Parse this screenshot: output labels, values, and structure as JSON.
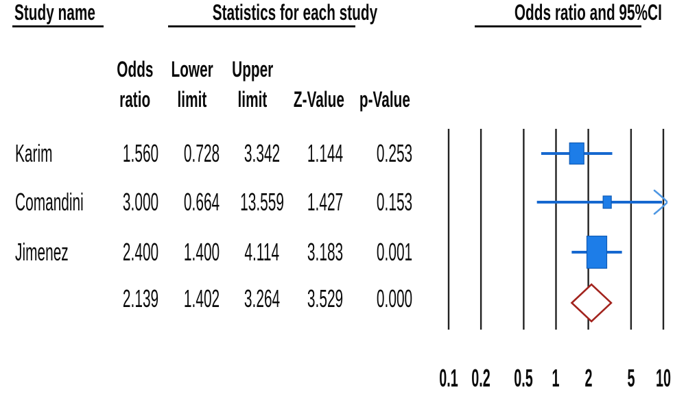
{
  "titles": {
    "study_name": "Study name",
    "statistics": "Statistics for each study",
    "odds_ratio_ci": "Odds ratio and 95%CI"
  },
  "table": {
    "columns": [
      {
        "line1": "Odds",
        "line2": "ratio"
      },
      {
        "line1": "Lower",
        "line2": "limit"
      },
      {
        "line1": "Upper",
        "line2": "limit"
      },
      {
        "line1": "",
        "line2": "Z-Value"
      },
      {
        "line1": "",
        "line2": "p-Value"
      }
    ],
    "rows": [
      {
        "name": "Karim",
        "values": [
          "1.560",
          "0.728",
          "3.342",
          "1.144",
          "0.253"
        ]
      },
      {
        "name": "Comandini",
        "values": [
          "3.000",
          "0.664",
          "13.559",
          "1.427",
          "0.153"
        ]
      },
      {
        "name": "Jimenez",
        "values": [
          "2.400",
          "1.400",
          "4.114",
          "3.183",
          "0.001"
        ]
      },
      {
        "name": "",
        "values": [
          "2.139",
          "1.402",
          "3.264",
          "3.529",
          "0.000"
        ]
      }
    ]
  },
  "chart_data": {
    "type": "forest",
    "x_scale": "log",
    "x_range": [
      0.1,
      10
    ],
    "x_ticks": [
      0.1,
      0.2,
      0.5,
      1,
      2,
      5,
      10
    ],
    "studies": [
      {
        "name": "Karim",
        "odds_ratio": 1.56,
        "lower": 0.728,
        "upper": 3.342
      },
      {
        "name": "Comandini",
        "odds_ratio": 3.0,
        "lower": 0.664,
        "upper": 13.559,
        "upper_clipped": true
      },
      {
        "name": "Jimenez",
        "odds_ratio": 2.4,
        "lower": 1.4,
        "upper": 4.114
      }
    ],
    "summary": {
      "odds_ratio": 2.139,
      "lower": 1.402,
      "upper": 3.264
    },
    "colors": {
      "marker_fill": "#1d7de8",
      "marker_stroke": "#0e5ab5",
      "ci_line": "#1668cf",
      "arrow": "#4e97e3",
      "summary_outline": "#a2231d",
      "gridline": "#222222"
    },
    "legend": "none",
    "grid": "vertical-log-ticks"
  }
}
